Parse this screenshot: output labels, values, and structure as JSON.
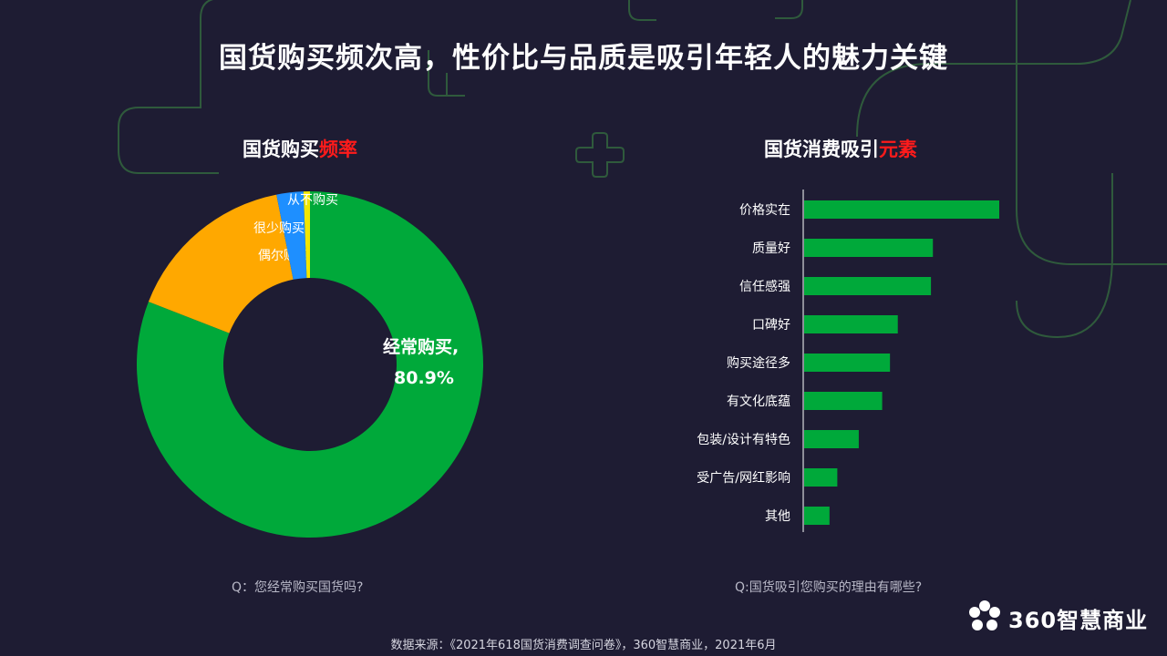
{
  "title": "国货购买频次高，性价比与品质是吸引年轻人的魅力关键",
  "left": {
    "subtitle_main": "国货购买",
    "subtitle_highlight": "频率",
    "question": "Q：您经常购买国货吗?"
  },
  "right": {
    "subtitle_main": "国货消费吸引",
    "subtitle_highlight": "元素",
    "question": "Q:国货吸引您购买的理由有哪些?"
  },
  "source": "数据来源：《2021年618国货消费调查问卷》，360智慧商业，2021年6月",
  "brand": {
    "name": "360智慧商业",
    "icon": "flower-logo-icon"
  },
  "colors": {
    "background": "#1e1c33",
    "green": "#00a93a",
    "orange": "#ffa800",
    "blue": "#1e8fff",
    "yellow": "#f2e600",
    "highlight": "#ff1b1b",
    "decoration": "#2f5a3c"
  },
  "chart_data": [
    {
      "type": "pie",
      "donut": true,
      "categories": [
        "经常购买",
        "偶尔购买",
        "很少购买",
        "从不购买"
      ],
      "values": [
        80.9,
        16.0,
        2.5,
        0.6
      ],
      "colors": [
        "#00a93a",
        "#ffa800",
        "#1e8fff",
        "#f2e600"
      ],
      "center_label": {
        "name": "经常购买,",
        "value": "80.9%"
      }
    },
    {
      "type": "bar",
      "orientation": "horizontal",
      "categories": [
        "价格实在",
        "质量好",
        "信任感强",
        "口碑好",
        "购买途径多",
        "有文化底蕴",
        "包装/设计有特色",
        "受广告/网红影响",
        "其他"
      ],
      "values": [
        100,
        66,
        65,
        48,
        44,
        40,
        28,
        17,
        13
      ],
      "color": "#00a93a",
      "grid": false,
      "axis_ticks_shown": false
    }
  ]
}
